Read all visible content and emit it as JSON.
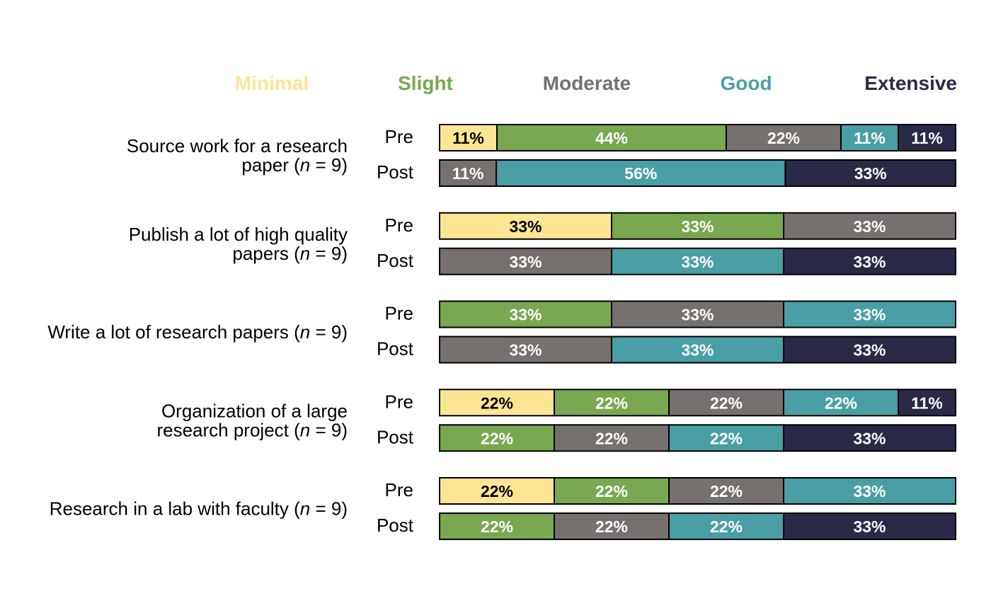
{
  "chart_data": {
    "type": "bar",
    "orientation": "horizontal",
    "stacked": true,
    "percent_scale": true,
    "legend_placement": "top",
    "grid": false,
    "levels": [
      {
        "name": "Minimal",
        "color": "#fde594"
      },
      {
        "name": "Slight",
        "color": "#78a850"
      },
      {
        "name": "Moderate",
        "color": "#76706e"
      },
      {
        "name": "Good",
        "color": "#4a9fa6"
      },
      {
        "name": "Extensive",
        "color": "#2a2a48"
      }
    ],
    "categories": [
      {
        "label_lines": [
          "Source work for a research",
          "paper (n = 9)"
        ],
        "rows": [
          {
            "label": "Pre",
            "values": [
              11,
              44,
              22,
              11,
              11
            ],
            "labels": [
              "11%",
              "44%",
              "22%",
              "11%",
              "11%"
            ]
          },
          {
            "label": "Post",
            "values": [
              0,
              0,
              11,
              56,
              33
            ],
            "labels": [
              "",
              "",
              "11%",
              "56%",
              "33%"
            ]
          }
        ]
      },
      {
        "label_lines": [
          "Publish a lot of high quality",
          "papers (n = 9)"
        ],
        "rows": [
          {
            "label": "Pre",
            "values": [
              33,
              33,
              33,
              0,
              0
            ],
            "labels": [
              "33%",
              "33%",
              "33%",
              "",
              ""
            ]
          },
          {
            "label": "Post",
            "values": [
              0,
              0,
              33,
              33,
              33
            ],
            "labels": [
              "",
              "",
              "33%",
              "33%",
              "33%"
            ]
          }
        ]
      },
      {
        "label_lines": [
          "Write a lot of research papers (n = 9)"
        ],
        "rows": [
          {
            "label": "Pre",
            "values": [
              0,
              33,
              33,
              33,
              0
            ],
            "labels": [
              "",
              "33%",
              "33%",
              "33%",
              ""
            ]
          },
          {
            "label": "Post",
            "values": [
              0,
              0,
              33,
              33,
              33
            ],
            "labels": [
              "",
              "",
              "33%",
              "33%",
              "33%"
            ]
          }
        ]
      },
      {
        "label_lines": [
          "Organization of a large",
          "research project (n = 9)"
        ],
        "rows": [
          {
            "label": "Pre",
            "values": [
              22,
              22,
              22,
              22,
              11
            ],
            "labels": [
              "22%",
              "22%",
              "22%",
              "22%",
              "11%"
            ]
          },
          {
            "label": "Post",
            "values": [
              0,
              22,
              22,
              22,
              33
            ],
            "labels": [
              "",
              "22%",
              "22%",
              "22%",
              "33%"
            ]
          }
        ]
      },
      {
        "label_lines": [
          "Research in a lab with faculty (n = 9)"
        ],
        "rows": [
          {
            "label": "Pre",
            "values": [
              22,
              22,
              22,
              33,
              0
            ],
            "labels": [
              "22%",
              "22%",
              "22%",
              "33%",
              ""
            ]
          },
          {
            "label": "Post",
            "values": [
              0,
              22,
              22,
              22,
              33
            ],
            "labels": [
              "",
              "22%",
              "22%",
              "22%",
              "33%"
            ]
          }
        ]
      }
    ]
  }
}
